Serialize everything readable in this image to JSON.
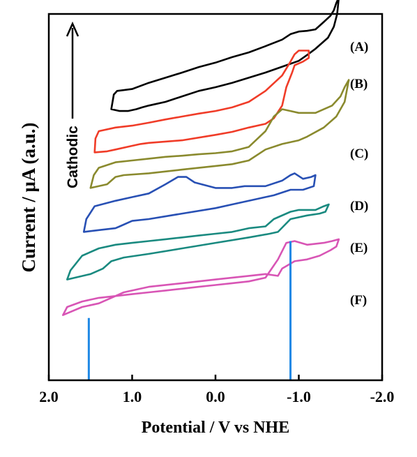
{
  "chart_data": {
    "type": "line",
    "xlabel": "Potential / V vs NHE",
    "ylabel": "Current / μA (a.u.)",
    "xlim": [
      2.0,
      -2.0
    ],
    "x_ticks": [
      2.0,
      1.0,
      0.0,
      -1.0,
      -2.0
    ],
    "tick_labels": [
      "2.0",
      "1.0",
      "0.0",
      "-1.0",
      "-2.0"
    ],
    "arrow_annotation": "Cathodic",
    "series": [
      {
        "name": "(A)",
        "color": "#000000",
        "forward": [
          [
            1.25,
            0.74
          ],
          [
            1.22,
            0.78
          ],
          [
            1.18,
            0.79
          ],
          [
            1.0,
            0.795
          ],
          [
            0.8,
            0.812
          ],
          [
            0.6,
            0.826
          ],
          [
            0.4,
            0.84
          ],
          [
            0.2,
            0.855
          ],
          [
            0.0,
            0.867
          ],
          [
            -0.2,
            0.882
          ],
          [
            -0.4,
            0.895
          ],
          [
            -0.6,
            0.912
          ],
          [
            -0.8,
            0.93
          ],
          [
            -0.9,
            0.945
          ],
          [
            -1.0,
            0.952
          ],
          [
            -1.1,
            0.954
          ],
          [
            -1.2,
            0.958
          ],
          [
            -1.3,
            0.978
          ],
          [
            -1.38,
            0.995
          ],
          [
            -1.42,
            1.01
          ],
          [
            -1.45,
            1.03
          ],
          [
            -1.48,
            1.045
          ]
        ],
        "reverse": [
          [
            -1.48,
            1.045
          ],
          [
            -1.46,
            1.0
          ],
          [
            -1.42,
            0.965
          ],
          [
            -1.35,
            0.935
          ],
          [
            -1.2,
            0.905
          ],
          [
            -1.1,
            0.888
          ],
          [
            -1.0,
            0.872
          ],
          [
            -0.8,
            0.856
          ],
          [
            -0.6,
            0.84
          ],
          [
            -0.4,
            0.826
          ],
          [
            -0.2,
            0.812
          ],
          [
            0.0,
            0.8
          ],
          [
            0.2,
            0.79
          ],
          [
            0.4,
            0.775
          ],
          [
            0.6,
            0.76
          ],
          [
            0.8,
            0.75
          ],
          [
            0.88,
            0.745
          ],
          [
            0.95,
            0.74
          ],
          [
            1.05,
            0.735
          ],
          [
            1.15,
            0.735
          ],
          [
            1.25,
            0.74
          ]
        ]
      },
      {
        "name": "(B)",
        "color": "#f03c28",
        "forward": [
          [
            1.45,
            0.622
          ],
          [
            1.44,
            0.66
          ],
          [
            1.4,
            0.68
          ],
          [
            1.2,
            0.69
          ],
          [
            1.0,
            0.695
          ],
          [
            0.8,
            0.703
          ],
          [
            0.6,
            0.712
          ],
          [
            0.4,
            0.72
          ],
          [
            0.2,
            0.728
          ],
          [
            0.0,
            0.735
          ],
          [
            -0.2,
            0.745
          ],
          [
            -0.4,
            0.76
          ],
          [
            -0.6,
            0.79
          ],
          [
            -0.8,
            0.832
          ],
          [
            -0.9,
            0.87
          ],
          [
            -0.95,
            0.89
          ],
          [
            -1.0,
            0.9
          ],
          [
            -1.05,
            0.9
          ],
          [
            -1.12,
            0.9
          ]
        ],
        "reverse": [
          [
            -1.12,
            0.9
          ],
          [
            -1.12,
            0.88
          ],
          [
            -1.05,
            0.87
          ],
          [
            -0.95,
            0.86
          ],
          [
            -0.92,
            0.84
          ],
          [
            -0.85,
            0.8
          ],
          [
            -0.8,
            0.75
          ],
          [
            -0.7,
            0.715
          ],
          [
            -0.6,
            0.7
          ],
          [
            -0.4,
            0.69
          ],
          [
            -0.2,
            0.678
          ],
          [
            0.0,
            0.67
          ],
          [
            0.4,
            0.655
          ],
          [
            0.8,
            0.648
          ],
          [
            0.9,
            0.645
          ],
          [
            1.0,
            0.64
          ],
          [
            1.2,
            0.63
          ],
          [
            1.3,
            0.625
          ],
          [
            1.45,
            0.622
          ]
        ]
      },
      {
        "name": "(C)",
        "color": "#8a8a2e",
        "forward": [
          [
            1.5,
            0.525
          ],
          [
            1.46,
            0.56
          ],
          [
            1.4,
            0.58
          ],
          [
            1.2,
            0.595
          ],
          [
            1.0,
            0.6
          ],
          [
            0.8,
            0.605
          ],
          [
            0.6,
            0.61
          ],
          [
            0.4,
            0.613
          ],
          [
            0.2,
            0.617
          ],
          [
            0.0,
            0.62
          ],
          [
            -0.2,
            0.625
          ],
          [
            -0.4,
            0.637
          ],
          [
            -0.6,
            0.68
          ],
          [
            -0.7,
            0.72
          ],
          [
            -0.8,
            0.74
          ],
          [
            -0.9,
            0.735
          ],
          [
            -1.0,
            0.73
          ],
          [
            -1.2,
            0.73
          ],
          [
            -1.4,
            0.75
          ],
          [
            -1.5,
            0.775
          ],
          [
            -1.55,
            0.8
          ],
          [
            -1.6,
            0.82
          ]
        ],
        "reverse": [
          [
            -1.6,
            0.82
          ],
          [
            -1.55,
            0.76
          ],
          [
            -1.45,
            0.72
          ],
          [
            -1.3,
            0.69
          ],
          [
            -1.1,
            0.665
          ],
          [
            -1.0,
            0.655
          ],
          [
            -0.8,
            0.645
          ],
          [
            -0.6,
            0.63
          ],
          [
            -0.4,
            0.6
          ],
          [
            -0.2,
            0.59
          ],
          [
            0.0,
            0.585
          ],
          [
            0.4,
            0.575
          ],
          [
            0.8,
            0.565
          ],
          [
            1.1,
            0.56
          ],
          [
            1.2,
            0.555
          ],
          [
            1.3,
            0.535
          ],
          [
            1.5,
            0.525
          ]
        ]
      },
      {
        "name": "(D)",
        "color": "#2850b4",
        "forward": [
          [
            1.58,
            0.405
          ],
          [
            1.55,
            0.44
          ],
          [
            1.45,
            0.475
          ],
          [
            1.2,
            0.49
          ],
          [
            1.0,
            0.5
          ],
          [
            0.8,
            0.51
          ],
          [
            0.6,
            0.535
          ],
          [
            0.45,
            0.555
          ],
          [
            0.35,
            0.555
          ],
          [
            0.25,
            0.54
          ],
          [
            0.0,
            0.525
          ],
          [
            -0.2,
            0.525
          ],
          [
            -0.35,
            0.53
          ],
          [
            -0.6,
            0.53
          ],
          [
            -0.8,
            0.545
          ],
          [
            -0.9,
            0.56
          ],
          [
            -0.95,
            0.565
          ],
          [
            -1.05,
            0.55
          ],
          [
            -1.15,
            0.555
          ],
          [
            -1.2,
            0.56
          ]
        ],
        "reverse": [
          [
            -1.2,
            0.56
          ],
          [
            -1.18,
            0.53
          ],
          [
            -1.05,
            0.52
          ],
          [
            -0.9,
            0.52
          ],
          [
            -0.7,
            0.505
          ],
          [
            -0.5,
            0.495
          ],
          [
            -0.2,
            0.48
          ],
          [
            0.0,
            0.47
          ],
          [
            0.4,
            0.455
          ],
          [
            0.8,
            0.44
          ],
          [
            1.0,
            0.435
          ],
          [
            1.15,
            0.42
          ],
          [
            1.2,
            0.415
          ],
          [
            1.4,
            0.41
          ],
          [
            1.58,
            0.405
          ]
        ]
      },
      {
        "name": "(E)",
        "color": "#1a8a80",
        "forward": [
          [
            1.78,
            0.275
          ],
          [
            1.74,
            0.3
          ],
          [
            1.6,
            0.34
          ],
          [
            1.4,
            0.36
          ],
          [
            1.2,
            0.37
          ],
          [
            1.0,
            0.375
          ],
          [
            0.8,
            0.38
          ],
          [
            0.6,
            0.385
          ],
          [
            0.4,
            0.39
          ],
          [
            0.2,
            0.395
          ],
          [
            0.0,
            0.4
          ],
          [
            -0.2,
            0.405
          ],
          [
            -0.4,
            0.415
          ],
          [
            -0.6,
            0.42
          ],
          [
            -0.7,
            0.44
          ],
          [
            -0.9,
            0.46
          ],
          [
            -1.0,
            0.465
          ],
          [
            -1.2,
            0.465
          ],
          [
            -1.3,
            0.475
          ],
          [
            -1.36,
            0.48
          ]
        ],
        "reverse": [
          [
            -1.36,
            0.48
          ],
          [
            -1.32,
            0.46
          ],
          [
            -1.25,
            0.455
          ],
          [
            -1.1,
            0.45
          ],
          [
            -0.9,
            0.44
          ],
          [
            -0.75,
            0.405
          ],
          [
            -0.65,
            0.4
          ],
          [
            -0.4,
            0.39
          ],
          [
            0.0,
            0.375
          ],
          [
            0.4,
            0.36
          ],
          [
            0.8,
            0.345
          ],
          [
            1.1,
            0.335
          ],
          [
            1.25,
            0.325
          ],
          [
            1.35,
            0.305
          ],
          [
            1.5,
            0.29
          ],
          [
            1.78,
            0.275
          ]
        ]
      },
      {
        "name": "(F)",
        "color": "#d855b5",
        "forward": [
          [
            1.83,
            0.178
          ],
          [
            1.78,
            0.2
          ],
          [
            1.6,
            0.215
          ],
          [
            1.4,
            0.225
          ],
          [
            1.2,
            0.23
          ],
          [
            1.0,
            0.235
          ],
          [
            0.8,
            0.24
          ],
          [
            0.6,
            0.245
          ],
          [
            0.4,
            0.25
          ],
          [
            0.2,
            0.255
          ],
          [
            0.0,
            0.26
          ],
          [
            -0.2,
            0.265
          ],
          [
            -0.4,
            0.27
          ],
          [
            -0.6,
            0.28
          ],
          [
            -0.75,
            0.33
          ],
          [
            -0.85,
            0.375
          ],
          [
            -0.95,
            0.38
          ],
          [
            -1.1,
            0.37
          ],
          [
            -1.3,
            0.375
          ],
          [
            -1.4,
            0.38
          ],
          [
            -1.48,
            0.385
          ]
        ],
        "reverse": [
          [
            -1.48,
            0.385
          ],
          [
            -1.45,
            0.365
          ],
          [
            -1.38,
            0.355
          ],
          [
            -1.25,
            0.34
          ],
          [
            -1.1,
            0.33
          ],
          [
            -0.95,
            0.325
          ],
          [
            -0.8,
            0.305
          ],
          [
            -0.75,
            0.285
          ],
          [
            -0.6,
            0.29
          ],
          [
            -0.4,
            0.285
          ],
          [
            0.0,
            0.275
          ],
          [
            0.4,
            0.265
          ],
          [
            0.8,
            0.255
          ],
          [
            1.1,
            0.24
          ],
          [
            1.25,
            0.225
          ],
          [
            1.4,
            0.21
          ],
          [
            1.6,
            0.2
          ],
          [
            1.83,
            0.178
          ]
        ]
      }
    ],
    "markers": [
      {
        "x": 1.52,
        "y_from": 0.145,
        "y_to": 0.17,
        "color": "#1e88e5"
      },
      {
        "x": -0.9,
        "y_from": 0.145,
        "y_to": 0.38,
        "color": "#1e88e5"
      }
    ]
  }
}
